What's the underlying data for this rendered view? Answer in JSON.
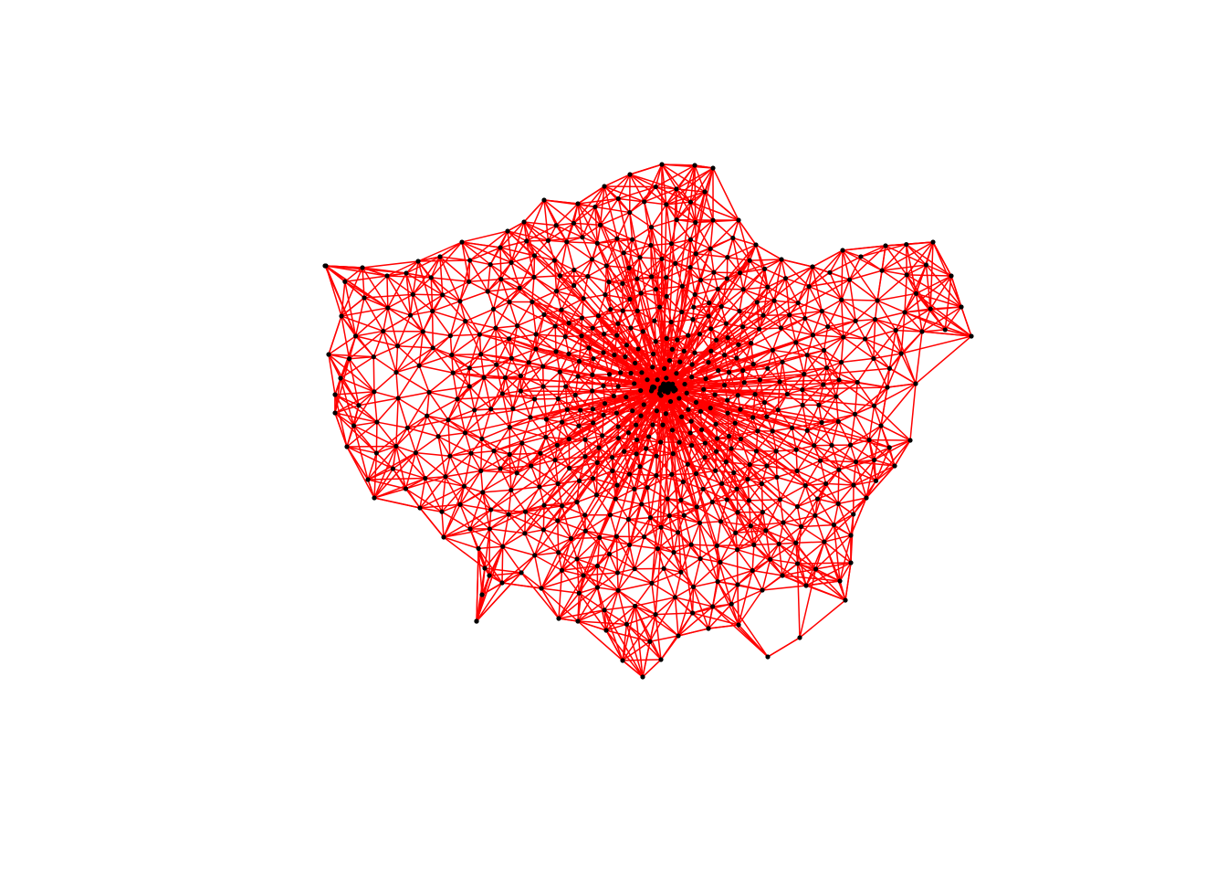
{
  "figure": {
    "kind": "network-graph",
    "background": "#ffffff",
    "edge_color": "#ff0000",
    "node_color": "#000000",
    "center_cluster": true
  }
}
